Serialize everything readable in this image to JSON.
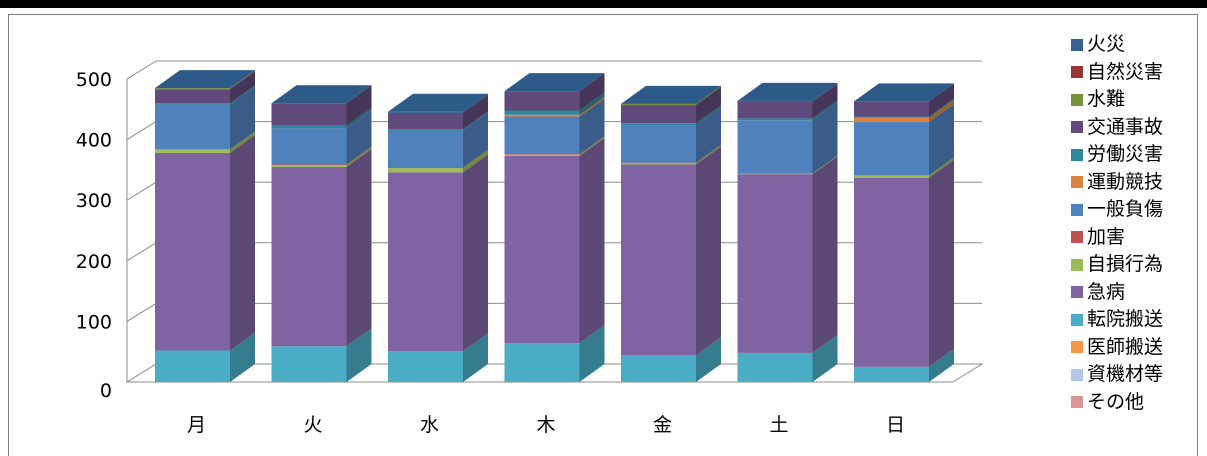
{
  "chart_data": {
    "type": "bar",
    "stacked": true,
    "three_d": true,
    "categories": [
      "月",
      "火",
      "水",
      "木",
      "金",
      "土",
      "日"
    ],
    "ylim": [
      0,
      500
    ],
    "yticks": [
      0,
      100,
      200,
      300,
      400,
      500
    ],
    "grid": true,
    "legend_position": "right",
    "series": [
      {
        "name": "その他",
        "color": "#D99694",
        "values": [
          0,
          0,
          0,
          0,
          0,
          0,
          0
        ]
      },
      {
        "name": "資機材等",
        "color": "#B3C6E7",
        "values": [
          0,
          0,
          0,
          0,
          0,
          0,
          0
        ]
      },
      {
        "name": "医師搬送",
        "color": "#F79646",
        "values": [
          0,
          0,
          0,
          0,
          0,
          0,
          0
        ]
      },
      {
        "name": "転院搬送",
        "color": "#4BACC6",
        "values": [
          52,
          59,
          51,
          64,
          44,
          48,
          25
        ]
      },
      {
        "name": "急病",
        "color": "#8064A2",
        "values": [
          326,
          296,
          295,
          309,
          315,
          295,
          312
        ]
      },
      {
        "name": "自損行為",
        "color": "#9BBB59",
        "values": [
          6,
          3,
          7,
          2,
          2,
          1,
          4
        ]
      },
      {
        "name": "加害",
        "color": "#C0504D",
        "values": [
          0,
          1,
          1,
          1,
          1,
          0,
          0
        ]
      },
      {
        "name": "一般負傷",
        "color": "#4F81BD",
        "values": [
          74,
          60,
          61,
          62,
          61,
          88,
          88
        ]
      },
      {
        "name": "運動競技",
        "color": "#D98441",
        "values": [
          0,
          0,
          0,
          3,
          0,
          0,
          7
        ]
      },
      {
        "name": "労働災害",
        "color": "#31859C",
        "values": [
          2,
          4,
          2,
          7,
          4,
          3,
          2
        ]
      },
      {
        "name": "交通事故",
        "color": "#604A7B",
        "values": [
          23,
          37,
          27,
          32,
          30,
          27,
          25
        ]
      },
      {
        "name": "水難",
        "color": "#76923C",
        "values": [
          2,
          0,
          0,
          0,
          2,
          0,
          0
        ]
      },
      {
        "name": "自然災害",
        "color": "#953735",
        "values": [
          0,
          0,
          0,
          0,
          0,
          0,
          0
        ]
      },
      {
        "name": "火災",
        "color": "#376092",
        "values": [
          0,
          0,
          2,
          0,
          0,
          2,
          0
        ]
      }
    ]
  },
  "legend_order": [
    "火災",
    "自然災害",
    "水難",
    "交通事故",
    "労働災害",
    "運動競技",
    "一般負傷",
    "加害",
    "自損行為",
    "急病",
    "転院搬送",
    "医師搬送",
    "資機材等",
    "その他"
  ]
}
